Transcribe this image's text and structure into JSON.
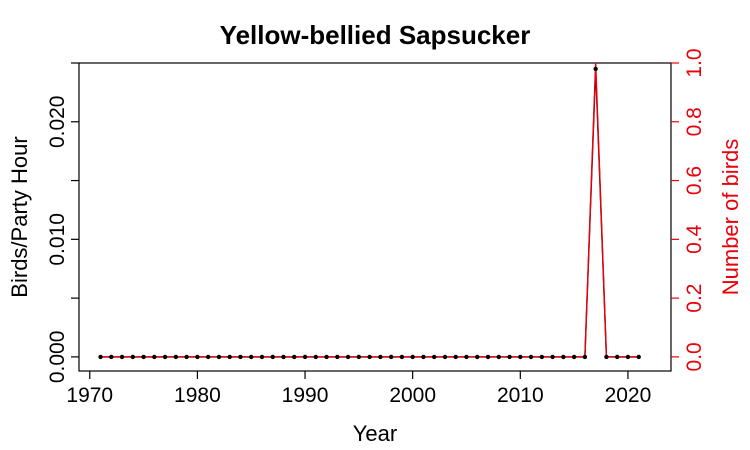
{
  "chart_data": {
    "type": "line",
    "title": "Yellow-bellied Sapsucker",
    "xlabel": "Year",
    "ylabel": "Birds/Party Hour",
    "ylabel_right": "Number of birds",
    "xlim": [
      1969,
      2024
    ],
    "ylim": [
      -0.0012,
      0.025
    ],
    "ylim_right": [
      -0.048,
      1.0
    ],
    "x_ticks": [
      1970,
      1980,
      1990,
      2000,
      2010,
      2020
    ],
    "y_ticks": [
      0.0,
      0.005,
      0.01,
      0.015,
      0.02,
      0.025
    ],
    "y_tick_labels": [
      "0.000",
      "",
      "0.010",
      "",
      "0.020",
      ""
    ],
    "y_right_ticks": [
      0.0,
      0.2,
      0.4,
      0.6,
      0.8,
      1.0
    ],
    "y_right_tick_labels": [
      "0.0",
      "0.2",
      "0.4",
      "0.6",
      "0.8",
      "1.0"
    ],
    "colors": {
      "primary": "#000000",
      "secondary": "#e8000b"
    },
    "x": [
      1971,
      1972,
      1973,
      1974,
      1975,
      1976,
      1977,
      1978,
      1979,
      1980,
      1981,
      1982,
      1983,
      1984,
      1985,
      1986,
      1987,
      1988,
      1989,
      1990,
      1991,
      1992,
      1993,
      1994,
      1995,
      1996,
      1997,
      1998,
      1999,
      2000,
      2001,
      2002,
      2003,
      2004,
      2005,
      2006,
      2007,
      2008,
      2009,
      2010,
      2011,
      2012,
      2013,
      2014,
      2015,
      2016,
      2017,
      2018,
      2019,
      2020,
      2021
    ],
    "series": [
      {
        "axis": "left",
        "values": [
          0,
          0,
          0,
          0,
          0,
          0,
          0,
          0,
          0,
          0,
          0,
          0,
          0,
          0,
          0,
          0,
          0,
          0,
          0,
          0,
          0,
          0,
          0,
          0,
          0,
          0,
          0,
          0,
          0,
          0,
          0,
          0,
          0,
          0,
          0,
          0,
          0,
          0,
          0,
          0,
          0,
          0,
          0,
          0,
          0,
          0,
          0.0245,
          0,
          0,
          0,
          0
        ]
      },
      {
        "axis": "right",
        "values": [
          0,
          0,
          0,
          0,
          0,
          0,
          0,
          0,
          0,
          0,
          0,
          0,
          0,
          0,
          0,
          0,
          0,
          0,
          0,
          0,
          0,
          0,
          0,
          0,
          0,
          0,
          0,
          0,
          0,
          0,
          0,
          0,
          0,
          0,
          0,
          0,
          0,
          0,
          0,
          0,
          0,
          0,
          0,
          0,
          0,
          0,
          1,
          0,
          0,
          0,
          0
        ]
      }
    ]
  }
}
